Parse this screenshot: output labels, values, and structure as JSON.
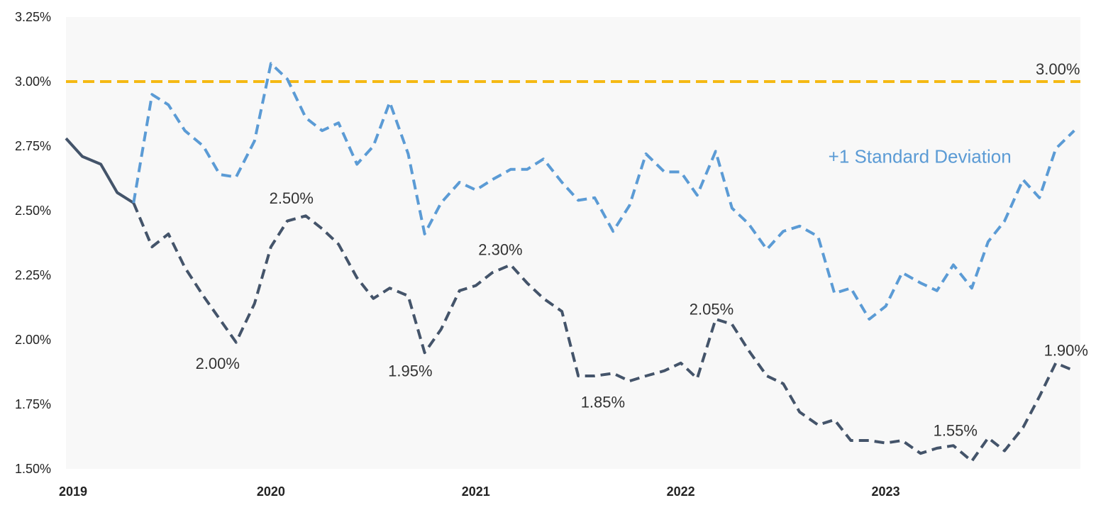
{
  "chart_data": {
    "type": "line",
    "title": "",
    "xlabel": "",
    "ylabel": "",
    "x_ticks": [
      "2019",
      "2020",
      "2021",
      "2022",
      "2023"
    ],
    "x_range": [
      2019,
      2023.95
    ],
    "y_ticks": [
      "3.25%",
      "3.00%",
      "2.75%",
      "2.50%",
      "2.25%",
      "2.00%",
      "1.75%",
      "1.50%"
    ],
    "y_tick_values": [
      3.25,
      3.0,
      2.75,
      2.5,
      2.25,
      2.0,
      1.75,
      1.5
    ],
    "ylim": [
      1.5,
      3.25
    ],
    "grid": false,
    "plot_background": "#f8f8f8",
    "reference_line": {
      "value": 3.0,
      "label": "3.00%",
      "color": "#f5b914",
      "style": "dashed"
    },
    "series": [
      {
        "key": "history",
        "style": "solid",
        "color": "#44546a",
        "x": [
          2019.0,
          2019.08,
          2019.17,
          2019.25,
          2019.33
        ],
        "values": [
          2.78,
          2.71,
          2.68,
          2.57,
          2.53
        ]
      },
      {
        "key": "central",
        "style": "dashed",
        "color": "#44546a",
        "x": [
          2019.33,
          2019.42,
          2019.5,
          2019.58,
          2019.67,
          2019.75,
          2019.83,
          2019.92,
          2020.0,
          2020.08,
          2020.17,
          2020.25,
          2020.33,
          2020.42,
          2020.5,
          2020.58,
          2020.67,
          2020.75,
          2020.83,
          2020.92,
          2021.0,
          2021.08,
          2021.17,
          2021.25,
          2021.33,
          2021.42,
          2021.5,
          2021.58,
          2021.67,
          2021.75,
          2021.83,
          2021.92,
          2022.0,
          2022.08,
          2022.17,
          2022.25,
          2022.33,
          2022.42,
          2022.5,
          2022.58,
          2022.67,
          2022.75,
          2022.83,
          2022.92,
          2023.0,
          2023.08,
          2023.17,
          2023.25,
          2023.33,
          2023.42,
          2023.5,
          2023.58,
          2023.67,
          2023.75,
          2023.83,
          2023.92
        ],
        "values": [
          2.53,
          2.36,
          2.41,
          2.28,
          2.17,
          2.08,
          1.99,
          2.14,
          2.36,
          2.46,
          2.48,
          2.43,
          2.37,
          2.24,
          2.16,
          2.2,
          2.17,
          1.95,
          2.04,
          2.19,
          2.21,
          2.26,
          2.29,
          2.22,
          2.16,
          2.11,
          1.86,
          1.86,
          1.87,
          1.84,
          1.86,
          1.88,
          1.91,
          1.85,
          2.08,
          2.06,
          1.96,
          1.86,
          1.83,
          1.72,
          1.67,
          1.69,
          1.61,
          1.61,
          1.6,
          1.61,
          1.56,
          1.58,
          1.59,
          1.53,
          1.62,
          1.57,
          1.66,
          1.78,
          1.91,
          1.88
        ]
      },
      {
        "key": "upper",
        "name": "+1 Standard Deviation",
        "style": "dashed",
        "color": "#5b9bd5",
        "x": [
          2019.33,
          2019.42,
          2019.5,
          2019.58,
          2019.67,
          2019.75,
          2019.83,
          2019.92,
          2020.0,
          2020.08,
          2020.17,
          2020.25,
          2020.33,
          2020.42,
          2020.5,
          2020.58,
          2020.67,
          2020.75,
          2020.83,
          2020.92,
          2021.0,
          2021.08,
          2021.17,
          2021.25,
          2021.33,
          2021.42,
          2021.5,
          2021.58,
          2021.67,
          2021.75,
          2021.83,
          2021.92,
          2022.0,
          2022.08,
          2022.17,
          2022.25,
          2022.33,
          2022.42,
          2022.5,
          2022.58,
          2022.67,
          2022.75,
          2022.83,
          2022.92,
          2023.0,
          2023.08,
          2023.17,
          2023.25,
          2023.33,
          2023.42,
          2023.5,
          2023.58,
          2023.67,
          2023.75,
          2023.83,
          2023.92
        ],
        "values": [
          2.53,
          2.95,
          2.91,
          2.81,
          2.75,
          2.64,
          2.63,
          2.77,
          3.07,
          3.01,
          2.86,
          2.81,
          2.84,
          2.68,
          2.75,
          2.92,
          2.72,
          2.41,
          2.53,
          2.61,
          2.58,
          2.62,
          2.66,
          2.66,
          2.7,
          2.61,
          2.54,
          2.55,
          2.42,
          2.52,
          2.72,
          2.65,
          2.65,
          2.56,
          2.73,
          2.51,
          2.45,
          2.35,
          2.42,
          2.44,
          2.4,
          2.18,
          2.2,
          2.08,
          2.13,
          2.26,
          2.22,
          2.19,
          2.29,
          2.2,
          2.38,
          2.46,
          2.62,
          2.55,
          2.74,
          2.81
        ]
      }
    ],
    "annotations": [
      {
        "text": "2.00%",
        "x": 2019.74,
        "y": 1.91
      },
      {
        "text": "2.50%",
        "x": 2020.1,
        "y": 2.55
      },
      {
        "text": "1.95%",
        "x": 2020.68,
        "y": 1.88
      },
      {
        "text": "2.30%",
        "x": 2021.12,
        "y": 2.35
      },
      {
        "text": "1.85%",
        "x": 2021.62,
        "y": 1.76
      },
      {
        "text": "2.05%",
        "x": 2022.15,
        "y": 2.12
      },
      {
        "text": "1.55%",
        "x": 2023.34,
        "y": 1.65
      },
      {
        "text": "1.90%",
        "x": 2023.88,
        "y": 1.96
      },
      {
        "text": "3.00%",
        "x": 2023.84,
        "y": 3.05
      }
    ],
    "series_label": {
      "text": "+1 Standard Deviation",
      "x": 2022.72,
      "y": 2.71,
      "color": "#5b9bd5"
    }
  }
}
